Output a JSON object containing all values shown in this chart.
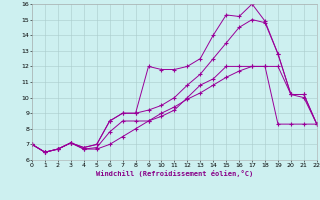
{
  "xlabel": "Windchill (Refroidissement éolien,°C)",
  "bg_color": "#cdf0f0",
  "line_color": "#990099",
  "grid_color": "#aacccc",
  "xlim": [
    0,
    22
  ],
  "ylim": [
    6,
    16
  ],
  "xticks": [
    0,
    1,
    2,
    3,
    4,
    5,
    6,
    7,
    8,
    9,
    10,
    11,
    12,
    13,
    14,
    15,
    16,
    17,
    18,
    19,
    20,
    21,
    22
  ],
  "yticks": [
    6,
    7,
    8,
    9,
    10,
    11,
    12,
    13,
    14,
    15,
    16
  ],
  "line1_x": [
    0,
    1,
    2,
    3,
    4,
    5,
    6,
    7,
    8,
    9,
    10,
    11,
    12,
    13,
    14,
    15,
    16,
    17,
    18,
    19,
    20,
    21,
    22
  ],
  "line1_y": [
    7.0,
    6.5,
    6.7,
    7.1,
    6.7,
    6.7,
    7.0,
    7.5,
    8.0,
    8.5,
    9.0,
    9.4,
    9.9,
    10.3,
    10.8,
    11.3,
    11.7,
    12.0,
    12.0,
    8.3,
    8.3,
    8.3,
    8.3
  ],
  "line2_x": [
    0,
    1,
    2,
    3,
    4,
    5,
    6,
    7,
    8,
    9,
    10,
    11,
    12,
    13,
    14,
    15,
    16,
    17,
    18,
    19,
    20,
    21,
    22
  ],
  "line2_y": [
    7.0,
    6.5,
    6.7,
    7.1,
    6.7,
    6.8,
    7.8,
    8.5,
    8.5,
    8.5,
    8.8,
    9.2,
    10.0,
    10.8,
    11.2,
    12.0,
    12.0,
    12.0,
    12.0,
    12.0,
    10.2,
    10.2,
    8.3
  ],
  "line3_x": [
    0,
    1,
    2,
    3,
    4,
    5,
    6,
    7,
    8,
    9,
    10,
    11,
    12,
    13,
    14,
    15,
    16,
    17,
    18,
    19,
    20,
    21,
    22
  ],
  "line3_y": [
    7.0,
    6.5,
    6.7,
    7.1,
    6.8,
    7.0,
    8.5,
    9.0,
    9.0,
    9.2,
    9.5,
    10.0,
    10.8,
    11.5,
    12.5,
    13.5,
    14.5,
    15.0,
    14.8,
    12.8,
    10.2,
    10.2,
    8.3
  ],
  "line4_x": [
    0,
    1,
    2,
    3,
    4,
    5,
    6,
    7,
    8,
    9,
    10,
    11,
    12,
    13,
    14,
    15,
    16,
    17,
    18,
    19,
    20,
    21,
    22
  ],
  "line4_y": [
    7.0,
    6.5,
    6.7,
    7.1,
    6.8,
    7.0,
    8.5,
    9.0,
    9.0,
    12.0,
    11.8,
    11.8,
    12.0,
    12.5,
    14.0,
    15.3,
    15.2,
    16.0,
    14.9,
    12.8,
    10.2,
    10.0,
    8.3
  ]
}
